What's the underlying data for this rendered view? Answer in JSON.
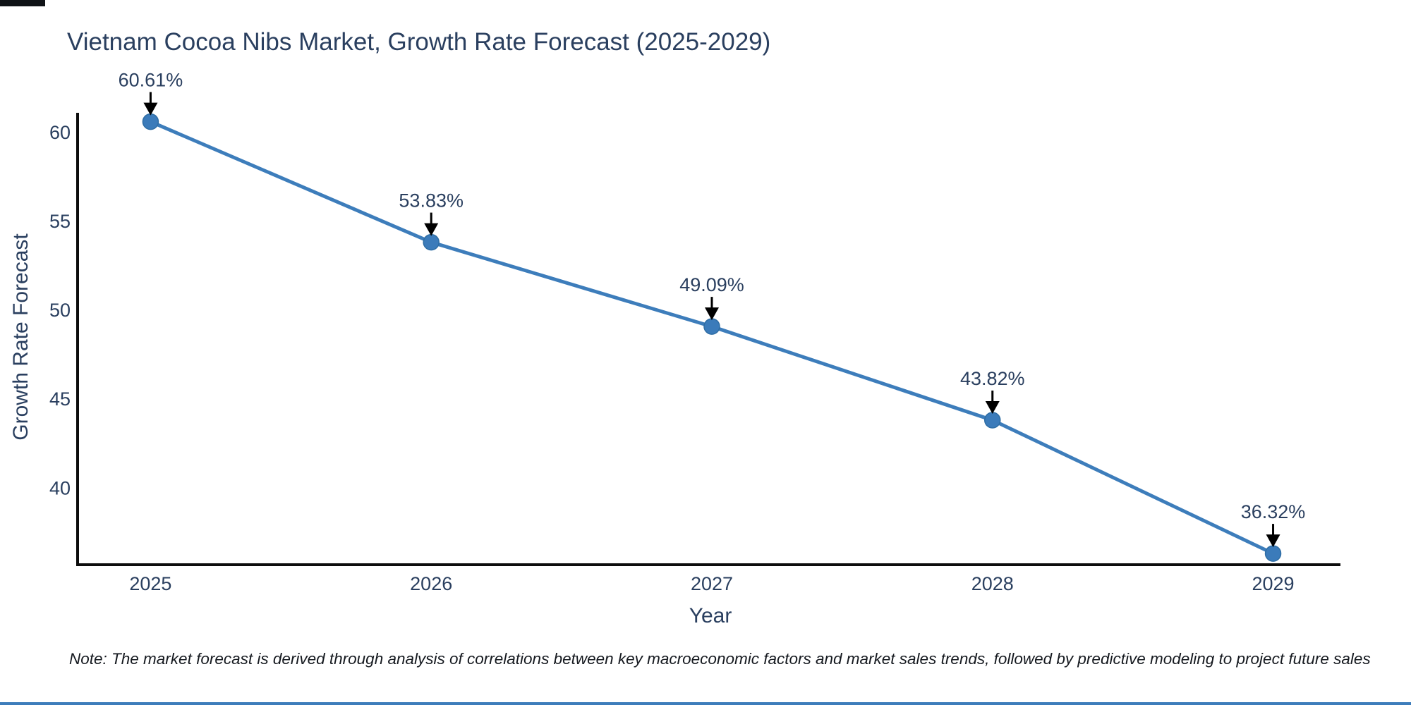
{
  "note": "Note: The market forecast is derived through analysis of correlations between key macroeconomic factors and market sales trends, followed by predictive modeling to project future sales",
  "chart_data": {
    "type": "line",
    "title": "Vietnam Cocoa Nibs Market, Growth Rate Forecast (2025-2029)",
    "xlabel": "Year",
    "ylabel": "Growth Rate Forecast",
    "x": [
      2025,
      2026,
      2027,
      2028,
      2029
    ],
    "y": [
      60.61,
      53.83,
      49.09,
      43.82,
      36.32
    ],
    "point_labels": [
      "60.61%",
      "53.83%",
      "49.09%",
      "43.82%",
      "36.32%"
    ],
    "xtick_labels": [
      "2025",
      "2026",
      "2027",
      "2028",
      "2029"
    ],
    "ytick_values": [
      40,
      45,
      50,
      55,
      60
    ],
    "xlim": [
      2024.74,
      2029.24
    ],
    "ylim": [
      35.69,
      61.11
    ],
    "grid": false,
    "legend": false,
    "annotations_have_arrows": true,
    "line_color": "#3d7dbb",
    "marker_fill_color": "#3b7bba",
    "marker_edge_color": "#2e6da4",
    "arrow_color": "#000000",
    "axis_line_color": "#0d0d0d",
    "text_color": "#2a3f5f",
    "note_color": "#15191f",
    "background_color": "#ffffff"
  }
}
